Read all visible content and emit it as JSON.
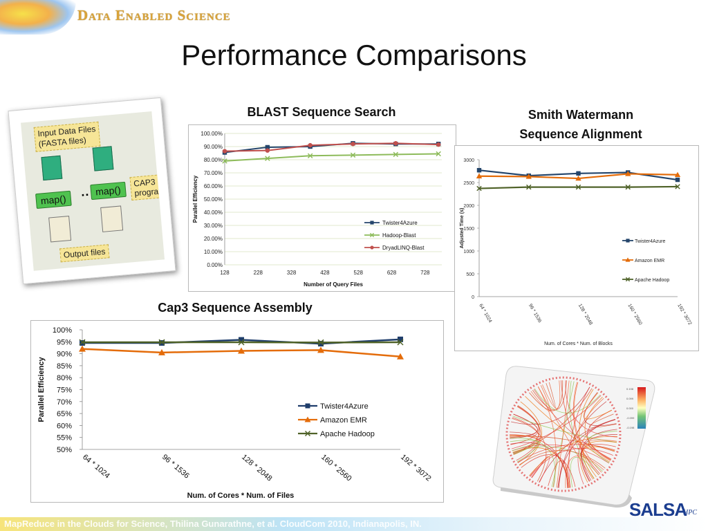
{
  "header": {
    "brand": "Data Enabled Science",
    "title": "Performance Comparisons"
  },
  "diagram": {
    "input_label": "Input Data Files\n(FASTA files)",
    "map1": "map()",
    "map2": "map()",
    "cap3": "CAP3\nprogram",
    "output_label": "Output files",
    "dots": "··"
  },
  "footer": {
    "text": "MapReduce in the Clouds for Science, Thilina Gunarathne, et al. CloudCom 2010, Indianapolis, IN.",
    "logo": "SALSA",
    "logo_sub": "HPC"
  },
  "chart_data": [
    {
      "id": "blast",
      "type": "line",
      "title": "BLAST Sequence Search",
      "xlabel": "Number of Query Files",
      "ylabel": "Parallel Efficiency",
      "x_ticks": [
        "128",
        "228",
        "328",
        "428",
        "528",
        "628",
        "728"
      ],
      "y_ticks": [
        "0.00%",
        "10.00%",
        "20.00%",
        "30.00%",
        "40.00%",
        "50.00%",
        "60.00%",
        "70.00%",
        "80.00%",
        "90.00%",
        "100.00%"
      ],
      "xlim": [
        128,
        778
      ],
      "ylim": [
        0,
        100
      ],
      "legend_position": "right",
      "series": [
        {
          "name": "Twister4Azure",
          "color": "#24456b",
          "marker": "square",
          "x": [
            128,
            256,
            384,
            512,
            640,
            768
          ],
          "y": [
            85.5,
            89.5,
            90,
            92.5,
            92,
            92
          ]
        },
        {
          "name": "Hadoop-Blast",
          "color": "#8dbb5a",
          "marker": "x",
          "x": [
            128,
            256,
            384,
            512,
            640,
            768
          ],
          "y": [
            79,
            81,
            83,
            83.5,
            84,
            84.5
          ]
        },
        {
          "name": "DryadLINQ-Blast",
          "color": "#c0504d",
          "marker": "circle",
          "x": [
            128,
            256,
            384,
            512,
            640,
            768
          ],
          "y": [
            86.5,
            87,
            91,
            92,
            92.5,
            91.5
          ]
        }
      ]
    },
    {
      "id": "smith",
      "type": "line",
      "title": "Smith Watermann\nSequence Alignment",
      "xlabel": "Num. of Cores * Num. of Blocks",
      "ylabel": "Adjusted Time (s)",
      "categories": [
        "64 * 1024",
        "96 * 1536",
        "128 * 2048",
        "160 * 2560",
        "192 * 3072"
      ],
      "y_ticks": [
        "0",
        "500",
        "1000",
        "1500",
        "2000",
        "2500",
        "3000"
      ],
      "ylim": [
        0,
        3000
      ],
      "legend_position": "right",
      "series": [
        {
          "name": "Twister4Azure",
          "color": "#24456b",
          "marker": "square",
          "values": [
            2770,
            2650,
            2700,
            2720,
            2560
          ]
        },
        {
          "name": "Amazon EMR",
          "color": "#e46c0a",
          "marker": "triangle",
          "values": [
            2640,
            2630,
            2590,
            2690,
            2670
          ]
        },
        {
          "name": "Apache Hadoop",
          "color": "#4f6228",
          "marker": "x",
          "values": [
            2370,
            2400,
            2400,
            2400,
            2410
          ]
        }
      ]
    },
    {
      "id": "cap3",
      "type": "line",
      "title": "Cap3 Sequence Assembly",
      "xlabel": "Num. of Cores * Num. of Files",
      "ylabel": "Parallel Efficiency",
      "categories": [
        "64 * 1024",
        "96 * 1536",
        "128 * 2048",
        "160 * 2560",
        "192 * 3072"
      ],
      "y_ticks": [
        "50%",
        "55%",
        "60%",
        "65%",
        "70%",
        "75%",
        "80%",
        "85%",
        "90%",
        "95%",
        "100%"
      ],
      "ylim": [
        50,
        100
      ],
      "legend_position": "right",
      "series": [
        {
          "name": "Twister4Azure",
          "color": "#1f3d6b",
          "marker": "square",
          "values": [
            94.5,
            94.5,
            95.8,
            94.2,
            96
          ]
        },
        {
          "name": "Amazon EMR",
          "color": "#e46c0a",
          "marker": "triangle",
          "values": [
            92,
            90.5,
            91.2,
            91.5,
            88.8
          ]
        },
        {
          "name": "Apache Hadoop",
          "color": "#4f6228",
          "marker": "x",
          "values": [
            94.8,
            94.8,
            94.8,
            94.7,
            94.8
          ]
        }
      ]
    }
  ],
  "circos": {
    "scale_labels": [
      "0.198",
      "0.099",
      "0.000",
      "-0.099",
      "-0.198"
    ]
  }
}
